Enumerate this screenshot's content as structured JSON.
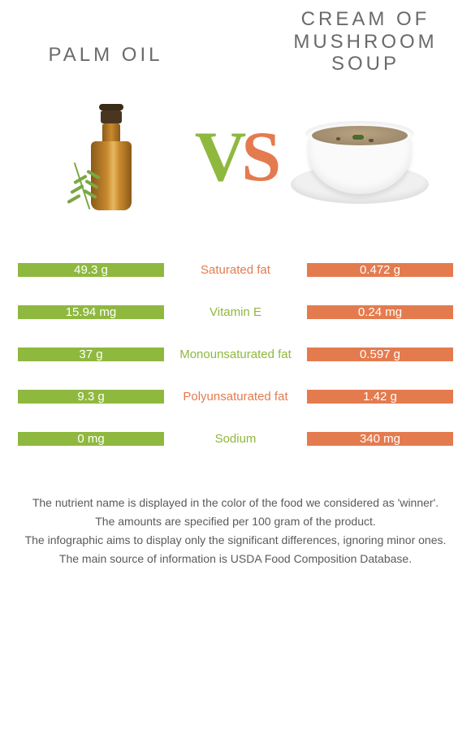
{
  "header": {
    "left_title": "Palm oil",
    "right_title": "Cream of mushroom soup",
    "vs_glyph_v": "V",
    "vs_glyph_s": "S"
  },
  "palette": {
    "green": "#8fb83f",
    "orange": "#e47b4e",
    "row_gap": 4
  },
  "rows": [
    {
      "left": "49.3 g",
      "label": "Saturated fat",
      "right": "0.472 g",
      "label_color": "#e47b4e"
    },
    {
      "left": "15.94 mg",
      "label": "Vitamin E",
      "right": "0.24 mg",
      "label_color": "#8fb83f"
    },
    {
      "left": "37 g",
      "label": "Monounsaturated fat",
      "right": "0.597 g",
      "label_color": "#8fb83f"
    },
    {
      "left": "9.3 g",
      "label": "Polyunsaturated fat",
      "right": "1.42 g",
      "label_color": "#e47b4e"
    },
    {
      "left": "0 mg",
      "label": "Sodium",
      "right": "340 mg",
      "label_color": "#8fb83f"
    }
  ],
  "cell_colors": {
    "left": "#8fb83f",
    "right": "#e47b4e"
  },
  "notes": [
    "The nutrient name is displayed in the color of the food we considered as 'winner'.",
    "The amounts are specified per 100 gram of the product.",
    "The infographic aims to display only the significant differences, ignoring minor ones.",
    "The main source of information is USDA Food Composition Database."
  ]
}
